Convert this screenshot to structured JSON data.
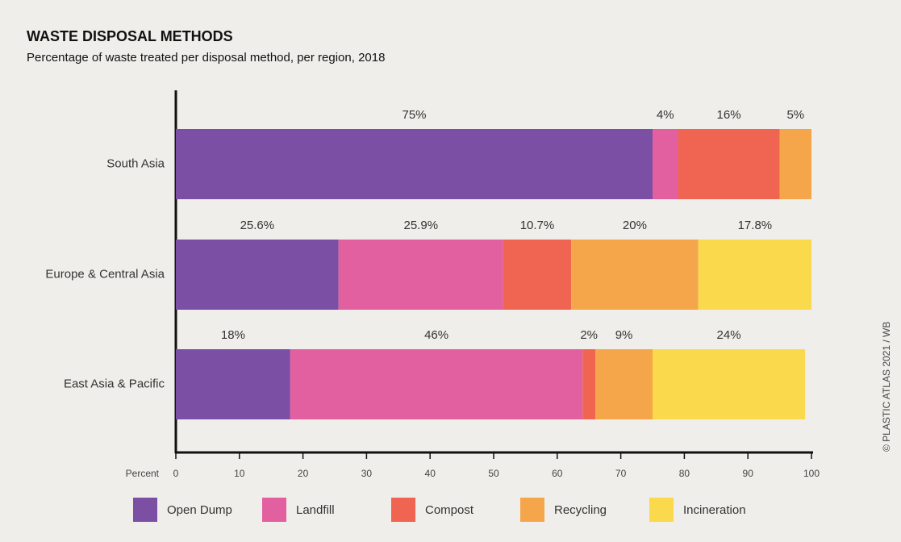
{
  "chart_data": {
    "type": "stacked_barh",
    "title": "WASTE DISPOSAL METHODS",
    "subtitle": "Percentage of waste treated per disposal method, per region, 2018",
    "xlabel": "Percent",
    "source": "© PLASTIC ATLAS 2021 / WB",
    "categories": [
      "South Asia",
      "Europe & Central Asia",
      "East Asia & Pacific"
    ],
    "series": [
      {
        "name": "Open Dump",
        "color": "#7b4fa3",
        "values": [
          75,
          25.6,
          18
        ],
        "value_labels": [
          "75%",
          "25.6%",
          "18%"
        ]
      },
      {
        "name": "Landfill",
        "color": "#e2609f",
        "values": [
          4,
          25.9,
          46
        ],
        "value_labels": [
          "4%",
          "25.9%",
          "46%"
        ]
      },
      {
        "name": "Compost",
        "color": "#ef6552",
        "values": [
          16,
          10.7,
          2
        ],
        "value_labels": [
          "16%",
          "10.7%",
          "2%"
        ]
      },
      {
        "name": "Recycling",
        "color": "#f5a64b",
        "values": [
          5,
          20,
          9
        ],
        "value_labels": [
          "5%",
          "20%",
          "9%"
        ]
      },
      {
        "name": "Incineration",
        "color": "#fbd94c",
        "values": [
          null,
          17.8,
          24
        ],
        "value_labels": [
          null,
          "17.8%",
          "24%"
        ]
      }
    ],
    "xlim": [
      0,
      100
    ],
    "xticks": [
      0,
      10,
      20,
      30,
      40,
      50,
      60,
      70,
      80,
      90,
      100
    ]
  }
}
